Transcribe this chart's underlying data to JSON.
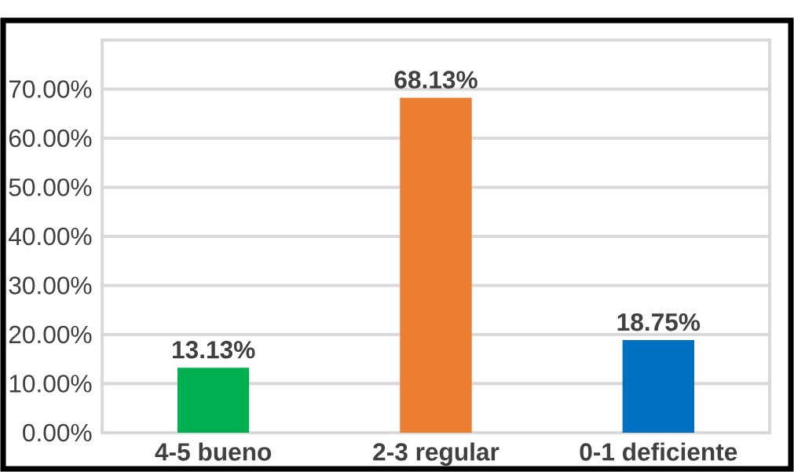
{
  "chart_data": {
    "type": "bar",
    "categories": [
      "4-5 bueno",
      "2-3 regular",
      "0-1 deficiente"
    ],
    "values": [
      13.13,
      68.13,
      18.75
    ],
    "colors": [
      "#00b050",
      "#ed7d31",
      "#0070c0"
    ],
    "value_labels": [
      "13.13%",
      "68.13%",
      "18.75%"
    ],
    "ylim": [
      0,
      80
    ],
    "yticks": [
      {
        "value": 0,
        "label": "0.00%"
      },
      {
        "value": 10,
        "label": "10.00%"
      },
      {
        "value": 20,
        "label": "20.00%"
      },
      {
        "value": 30,
        "label": "30.00%"
      },
      {
        "value": 40,
        "label": "40.00%"
      },
      {
        "value": 50,
        "label": "50.00%"
      },
      {
        "value": 60,
        "label": "60.00%"
      },
      {
        "value": 70,
        "label": "70.00%"
      }
    ],
    "grid": "y"
  }
}
